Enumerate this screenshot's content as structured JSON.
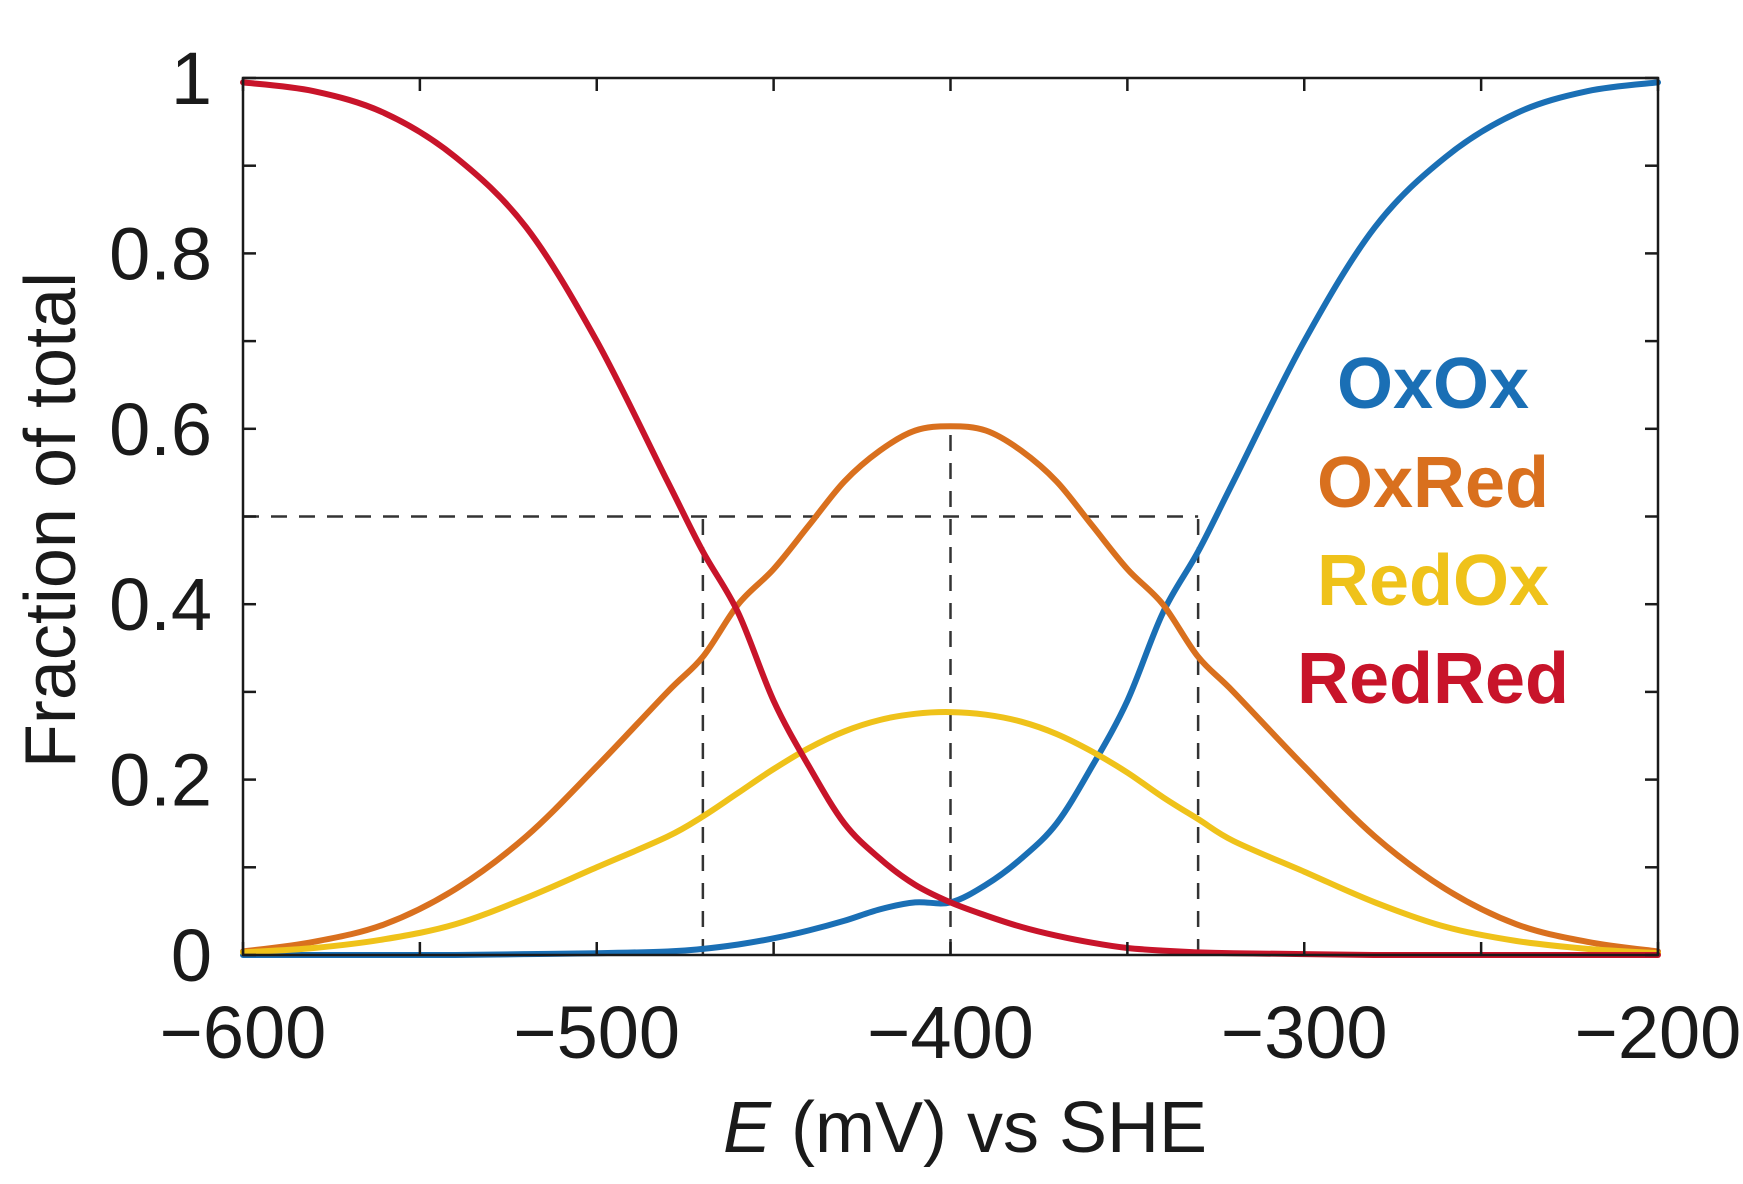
{
  "chart_data": {
    "type": "line",
    "xlabel_var": "E",
    "xlabel_rest": " (mV) vs SHE",
    "ylabel": "Fraction of total",
    "xlim": [
      -600,
      -200
    ],
    "ylim": [
      0,
      1
    ],
    "x_ticks": [
      -600,
      -500,
      -400,
      -300,
      -200
    ],
    "x_tick_labels": [
      "−600",
      "−500",
      "−400",
      "−300",
      "−200"
    ],
    "y_ticks": [
      0,
      0.2,
      0.4,
      0.6,
      0.8,
      1
    ],
    "y_tick_labels": [
      "0",
      "0.2",
      "0.4",
      "0.6",
      "0.8",
      "1"
    ],
    "grid": false,
    "legend_position": "right",
    "x": [
      -600,
      -580,
      -560,
      -540,
      -520,
      -500,
      -480,
      -470,
      -460,
      -450,
      -440,
      -430,
      -420,
      -410,
      -400,
      -390,
      -380,
      -370,
      -360,
      -350,
      -340,
      -330,
      -320,
      -300,
      -280,
      -260,
      -240,
      -220,
      -200
    ],
    "series": [
      {
        "name": "OxOx",
        "color": "#1a6fb5",
        "values": [
          0.0,
          0.0,
          0.0,
          0.0,
          0.001,
          0.002,
          0.004,
          0.007,
          0.012,
          0.019,
          0.028,
          0.039,
          0.052,
          0.06,
          0.06,
          0.08,
          0.11,
          0.15,
          0.215,
          0.29,
          0.39,
          0.46,
          0.54,
          0.7,
          0.83,
          0.91,
          0.96,
          0.985,
          0.995
        ]
      },
      {
        "name": "OxRed",
        "color": "#d9701e",
        "values": [
          0.004,
          0.015,
          0.035,
          0.075,
          0.135,
          0.215,
          0.3,
          0.34,
          0.4,
          0.44,
          0.49,
          0.54,
          0.575,
          0.598,
          0.603,
          0.598,
          0.575,
          0.54,
          0.49,
          0.44,
          0.4,
          0.34,
          0.3,
          0.215,
          0.135,
          0.075,
          0.035,
          0.015,
          0.004
        ]
      },
      {
        "name": "RedOx",
        "color": "#efc21a",
        "values": [
          0.003,
          0.008,
          0.018,
          0.035,
          0.065,
          0.1,
          0.135,
          0.158,
          0.185,
          0.212,
          0.236,
          0.255,
          0.268,
          0.275,
          0.277,
          0.274,
          0.266,
          0.252,
          0.232,
          0.208,
          0.18,
          0.155,
          0.13,
          0.095,
          0.06,
          0.032,
          0.016,
          0.007,
          0.002
        ]
      },
      {
        "name": "RedRed",
        "color": "#c8142a",
        "values": [
          0.995,
          0.985,
          0.96,
          0.91,
          0.83,
          0.7,
          0.54,
          0.46,
          0.39,
          0.29,
          0.215,
          0.15,
          0.11,
          0.08,
          0.06,
          0.045,
          0.032,
          0.022,
          0.014,
          0.008,
          0.005,
          0.003,
          0.002,
          0.001,
          0.0,
          0.0,
          0.0,
          0.0,
          0.0
        ]
      }
    ],
    "reference_lines": {
      "horizontal_y": 0.5,
      "vertical_x": [
        -470,
        -400,
        -330
      ]
    }
  }
}
